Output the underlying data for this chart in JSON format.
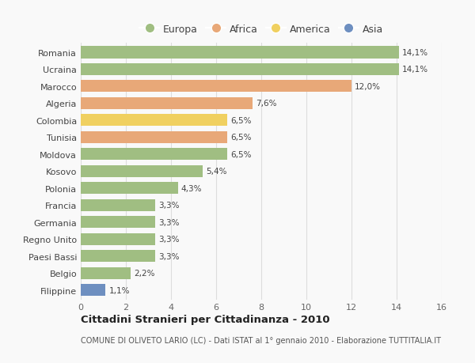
{
  "categories": [
    "Filippine",
    "Belgio",
    "Paesi Bassi",
    "Regno Unito",
    "Germania",
    "Francia",
    "Polonia",
    "Kosovo",
    "Moldova",
    "Tunisia",
    "Colombia",
    "Algeria",
    "Marocco",
    "Ucraina",
    "Romania"
  ],
  "values": [
    1.1,
    2.2,
    3.3,
    3.3,
    3.3,
    3.3,
    4.3,
    5.4,
    6.5,
    6.5,
    6.5,
    7.6,
    12.0,
    14.1,
    14.1
  ],
  "labels": [
    "1,1%",
    "2,2%",
    "3,3%",
    "3,3%",
    "3,3%",
    "3,3%",
    "4,3%",
    "5,4%",
    "6,5%",
    "6,5%",
    "6,5%",
    "7,6%",
    "12,0%",
    "14,1%",
    "14,1%"
  ],
  "colors": [
    "#6e8fc0",
    "#a0be82",
    "#a0be82",
    "#a0be82",
    "#a0be82",
    "#a0be82",
    "#a0be82",
    "#a0be82",
    "#a0be82",
    "#e8a878",
    "#f0d060",
    "#e8a878",
    "#e8a878",
    "#a0be82",
    "#a0be82"
  ],
  "legend_labels": [
    "Europa",
    "Africa",
    "America",
    "Asia"
  ],
  "legend_colors": [
    "#a0be82",
    "#e8a878",
    "#f0d060",
    "#6e8fc0"
  ],
  "title": "Cittadini Stranieri per Cittadinanza - 2010",
  "subtitle": "COMUNE DI OLIVETO LARIO (LC) - Dati ISTAT al 1° gennaio 2010 - Elaborazione TUTTITALIA.IT",
  "xlim": [
    0,
    16
  ],
  "xticks": [
    0,
    2,
    4,
    6,
    8,
    10,
    12,
    14,
    16
  ],
  "background_color": "#f9f9f9",
  "grid_color": "#dddddd",
  "bar_height": 0.7
}
